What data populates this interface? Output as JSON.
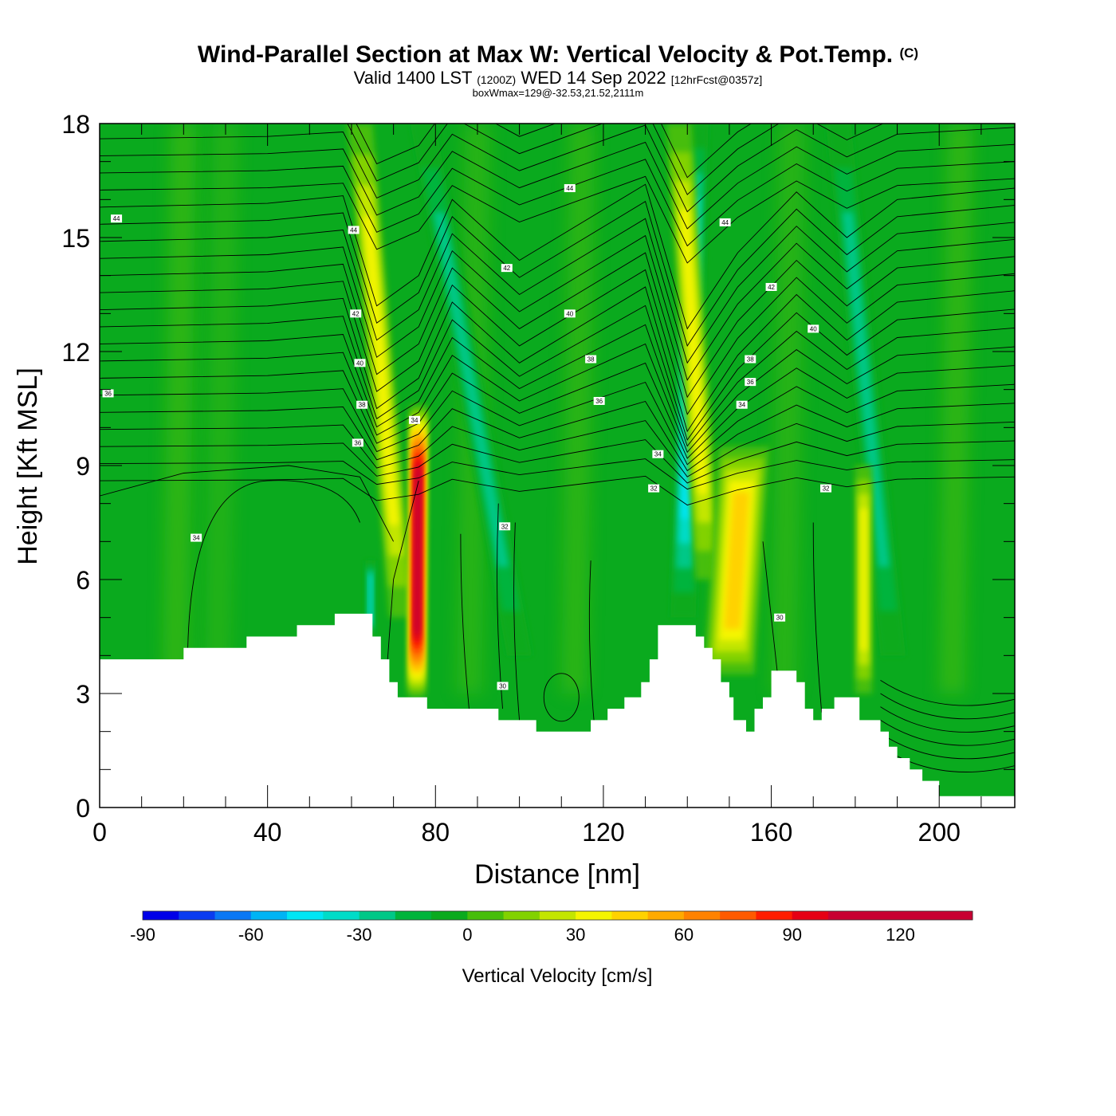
{
  "header": {
    "title": "Wind-Parallel Section at Max W: Vertical Velocity & Pot.Temp.",
    "copyright": "(C)",
    "valid_prefix": "Valid 1400 LST",
    "valid_utc": "(1200Z)",
    "valid_date": "WED 14 Sep 2022",
    "forecast": "[12hrFcst@0357z]",
    "box_wmax": "boxWmax=129@-32.53,21.52,2111m"
  },
  "chart_data": {
    "type": "heatmap",
    "xlabel": "Distance [nm]",
    "ylabel": "Height [Kft MSL]",
    "xlim": [
      0,
      218
    ],
    "ylim": [
      0,
      18
    ],
    "x_ticks": [
      0,
      40,
      80,
      120,
      160,
      200
    ],
    "y_ticks": [
      0,
      3,
      6,
      9,
      12,
      15,
      18
    ],
    "colorbar": {
      "label": "Vertical Velocity [cm/s]",
      "ticks": [
        -90,
        -60,
        -30,
        0,
        30,
        60,
        90,
        120
      ],
      "range": [
        -90,
        140
      ],
      "step": 10,
      "colors": [
        "#0000e8",
        "#0a3cf0",
        "#0a78f5",
        "#00b4f5",
        "#00e6f5",
        "#00dcc8",
        "#00c887",
        "#00b43c",
        "#0aaa1e",
        "#46be0a",
        "#82d200",
        "#c3e600",
        "#f5f500",
        "#ffd200",
        "#ffaa00",
        "#ff8200",
        "#ff5a00",
        "#ff1e00",
        "#e60014",
        "#c80032",
        "#c80032",
        "#c80032",
        "#c80032"
      ]
    },
    "terrain_kft": [
      [
        0,
        3.9
      ],
      [
        20,
        3.9
      ],
      [
        20,
        4.2
      ],
      [
        35,
        4.2
      ],
      [
        35,
        4.5
      ],
      [
        47,
        4.5
      ],
      [
        47,
        4.8
      ],
      [
        56,
        4.8
      ],
      [
        56,
        5.1
      ],
      [
        65,
        5.1
      ],
      [
        65,
        4.5
      ],
      [
        67,
        4.5
      ],
      [
        67,
        3.9
      ],
      [
        69,
        3.9
      ],
      [
        69,
        3.3
      ],
      [
        71,
        3.3
      ],
      [
        71,
        2.9
      ],
      [
        78,
        2.9
      ],
      [
        78,
        2.6
      ],
      [
        95,
        2.6
      ],
      [
        95,
        2.3
      ],
      [
        104,
        2.3
      ],
      [
        104,
        2.0
      ],
      [
        117,
        2.0
      ],
      [
        117,
        2.3
      ],
      [
        121,
        2.3
      ],
      [
        121,
        2.6
      ],
      [
        125,
        2.6
      ],
      [
        125,
        2.9
      ],
      [
        129,
        2.9
      ],
      [
        129,
        3.3
      ],
      [
        131,
        3.3
      ],
      [
        131,
        3.9
      ],
      [
        133,
        3.9
      ],
      [
        133,
        4.8
      ],
      [
        142,
        4.8
      ],
      [
        142,
        4.5
      ],
      [
        144,
        4.5
      ],
      [
        144,
        4.2
      ],
      [
        146,
        4.2
      ],
      [
        146,
        3.9
      ],
      [
        148,
        3.9
      ],
      [
        148,
        3.3
      ],
      [
        150,
        3.3
      ],
      [
        150,
        2.9
      ],
      [
        151,
        2.9
      ],
      [
        151,
        2.3
      ],
      [
        154,
        2.3
      ],
      [
        154,
        2.0
      ],
      [
        156,
        2.0
      ],
      [
        156,
        2.6
      ],
      [
        158,
        2.6
      ],
      [
        158,
        2.9
      ],
      [
        160,
        2.9
      ],
      [
        160,
        3.6
      ],
      [
        166,
        3.6
      ],
      [
        166,
        3.3
      ],
      [
        168,
        3.3
      ],
      [
        168,
        2.6
      ],
      [
        170,
        2.6
      ],
      [
        170,
        2.3
      ],
      [
        172,
        2.3
      ],
      [
        172,
        2.6
      ],
      [
        175,
        2.6
      ],
      [
        175,
        2.9
      ],
      [
        181,
        2.9
      ],
      [
        181,
        2.3
      ],
      [
        186,
        2.3
      ],
      [
        186,
        2.0
      ],
      [
        188,
        2.0
      ],
      [
        188,
        1.6
      ],
      [
        190,
        1.6
      ],
      [
        190,
        1.3
      ],
      [
        193,
        1.3
      ],
      [
        193,
        1.0
      ],
      [
        196,
        1.0
      ],
      [
        196,
        0.7
      ],
      [
        200,
        0.7
      ],
      [
        200,
        0.3
      ],
      [
        218,
        0.3
      ]
    ],
    "updraft_bands": [
      {
        "name": "updraft-1",
        "w_max": 129,
        "x_bottom": 75.5,
        "x_top": 76.0,
        "y_bottom": 2.9,
        "y_top": 10.6,
        "half_width": 2.0
      },
      {
        "name": "updraft-2",
        "w_max": 55,
        "x_bottom": 150.0,
        "x_top": 153.5,
        "y_bottom": 3.5,
        "y_top": 9.5,
        "half_width": 6.0
      },
      {
        "name": "updraft-3",
        "w_max": 45,
        "x_bottom": 72,
        "x_top": 62,
        "y_bottom": 5,
        "y_top": 18,
        "half_width": 3.0
      },
      {
        "name": "updraft-4",
        "w_max": 42,
        "x_bottom": 145,
        "x_top": 138,
        "y_bottom": 6,
        "y_top": 18,
        "half_width": 3.0
      },
      {
        "name": "updraft-5",
        "w_max": 40,
        "x_bottom": 182,
        "x_top": 182,
        "y_bottom": 3,
        "y_top": 9,
        "half_width": 2.0
      }
    ],
    "downdraft_bands": [
      {
        "name": "downdraft-1",
        "w_min": -45,
        "x_bottom": 64.5,
        "x_top": 64.5,
        "y_bottom": 4.5,
        "y_top": 6.5,
        "half_width": 1.2
      },
      {
        "name": "downdraft-2",
        "w_min": -35,
        "x_bottom": 100,
        "x_top": 77,
        "y_bottom": 4,
        "y_top": 18,
        "half_width": 3.0
      },
      {
        "name": "downdraft-3",
        "w_min": -50,
        "x_bottom": 139,
        "x_top": 142,
        "y_bottom": 5,
        "y_top": 18,
        "half_width": 3.0
      },
      {
        "name": "downdraft-4",
        "w_min": -30,
        "x_bottom": 189,
        "x_top": 176,
        "y_bottom": 4,
        "y_top": 18,
        "half_width": 3.0
      }
    ],
    "theta_contour_labels": [
      {
        "x": 4,
        "y": 15.5,
        "text": "44"
      },
      {
        "x": 60.5,
        "y": 15.2,
        "text": "44"
      },
      {
        "x": 61,
        "y": 13.0,
        "text": "42"
      },
      {
        "x": 62,
        "y": 11.7,
        "text": "40"
      },
      {
        "x": 62.5,
        "y": 10.6,
        "text": "38"
      },
      {
        "x": 61.5,
        "y": 9.6,
        "text": "36"
      },
      {
        "x": 2,
        "y": 10.9,
        "text": "36"
      },
      {
        "x": 75,
        "y": 10.2,
        "text": "34"
      },
      {
        "x": 23,
        "y": 7.1,
        "text": "34"
      },
      {
        "x": 112,
        "y": 16.3,
        "text": "44"
      },
      {
        "x": 97,
        "y": 14.2,
        "text": "42"
      },
      {
        "x": 112,
        "y": 13.0,
        "text": "40"
      },
      {
        "x": 117,
        "y": 11.8,
        "text": "38"
      },
      {
        "x": 119,
        "y": 10.7,
        "text": "36"
      },
      {
        "x": 96.5,
        "y": 7.4,
        "text": "32"
      },
      {
        "x": 96,
        "y": 3.2,
        "text": "30"
      },
      {
        "x": 149,
        "y": 15.4,
        "text": "44"
      },
      {
        "x": 160,
        "y": 13.7,
        "text": "42"
      },
      {
        "x": 170,
        "y": 12.6,
        "text": "40"
      },
      {
        "x": 155,
        "y": 11.8,
        "text": "38"
      },
      {
        "x": 155,
        "y": 11.2,
        "text": "36"
      },
      {
        "x": 153,
        "y": 10.6,
        "text": "34"
      },
      {
        "x": 133,
        "y": 9.3,
        "text": "34"
      },
      {
        "x": 132,
        "y": 8.4,
        "text": "32"
      },
      {
        "x": 173,
        "y": 8.4,
        "text": "32"
      },
      {
        "x": 162,
        "y": 5.0,
        "text": "30"
      }
    ]
  }
}
